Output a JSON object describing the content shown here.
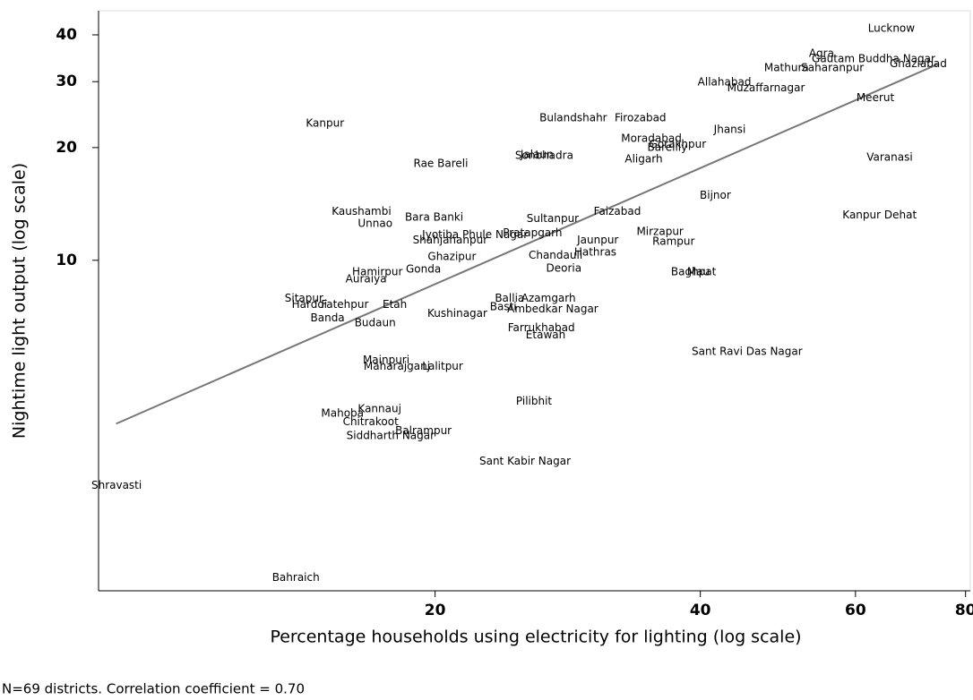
{
  "chart_data": {
    "type": "scatter",
    "xlabel": "Percentage households using electricity for lighting (log scale)",
    "ylabel": "Nightime light output (log scale)",
    "note": "N=69 districts. Correlation coefficient = 0.70",
    "log_x": true,
    "log_y": true,
    "xlim": [
      8.3,
      81
    ],
    "ylim": [
      1.31,
      46.4
    ],
    "xticks": [
      20,
      40,
      60,
      80
    ],
    "yticks": [
      10,
      20,
      30,
      40
    ],
    "labels": [
      "Lucknow",
      "Agra",
      "Gautam Buddha Nagar",
      "Ghaziabad",
      "Mathura",
      "Saharanpur",
      "Allahabad",
      "Muzaffarnagar",
      "Meerut",
      "Kanpur",
      "Bulandshahr",
      "Firozabad",
      "Jhansi",
      "Moradabad",
      "Bareilly",
      "Gorakhpur",
      "Sonbhadra",
      "Jalaun",
      "Aligarh",
      "Rae Bareli",
      "Varanasi",
      "Bijnor",
      "Kaushambi",
      "Unnao",
      "Bara Banki",
      "Faizabad",
      "Kanpur Dehat",
      "Sultanpur",
      "Jyotiba Phule Nagar",
      "Pratapgarh",
      "Shahjahanpur",
      "Mirzapur",
      "Rampur",
      "Jaunpur",
      "Hathras",
      "Chandauli",
      "Ghazipur",
      "Deoria",
      "Gonda",
      "Hamirpur",
      "Auraiya",
      "Baghpat",
      "Mau",
      "Sitapur",
      "Hardoi",
      "Fatehpur",
      "Etah",
      "Banda",
      "Budaun",
      "Kushinagar",
      "Ballia",
      "Azamgarh",
      "Basti",
      "Ambedkar Nagar",
      "Farrukhabad",
      "Etawah",
      "Sant Ravi Das Nagar",
      "Mainpuri",
      "Maharajganj",
      "Lalitpur",
      "Pilibhit",
      "Kannauj",
      "Mahoba",
      "Chitrakoot",
      "Balrampur",
      "Siddharth Nagar",
      "Sant Kabir Nagar",
      "Shravasti",
      "Bahraich"
    ],
    "x": [
      65.9,
      54.9,
      62.9,
      70.7,
      50.1,
      56.5,
      42.6,
      47.5,
      63.2,
      15.0,
      28.7,
      34.2,
      43.2,
      35.2,
      36.7,
      37.7,
      26.6,
      26.1,
      34.5,
      20.3,
      65.6,
      41.6,
      16.5,
      17.1,
      19.95,
      32.2,
      63.9,
      27.2,
      22.2,
      25.8,
      20.8,
      36.0,
      37.3,
      30.6,
      30.4,
      27.4,
      20.9,
      28.0,
      19.4,
      17.2,
      16.7,
      39.3,
      39.8,
      14.2,
      14.4,
      15.8,
      18.0,
      15.1,
      17.1,
      21.2,
      24.3,
      26.9,
      23.9,
      27.2,
      26.4,
      26.7,
      45.2,
      17.6,
      18.1,
      20.4,
      25.9,
      17.3,
      15.7,
      16.9,
      19.4,
      17.8,
      25.3,
      8.7,
      13.9
    ],
    "values": [
      41.6,
      35.6,
      34.5,
      33.4,
      32.6,
      32.6,
      29.9,
      28.8,
      27.1,
      23.2,
      24.0,
      24.0,
      22.3,
      21.1,
      20.0,
      20.4,
      19.0,
      19.1,
      18.6,
      18.1,
      18.8,
      14.9,
      13.5,
      12.5,
      13.0,
      13.5,
      13.2,
      12.9,
      11.7,
      11.8,
      11.3,
      11.9,
      11.2,
      11.3,
      10.5,
      10.3,
      10.2,
      9.5,
      9.45,
      9.3,
      8.9,
      9.3,
      9.3,
      7.9,
      7.6,
      7.6,
      7.6,
      7.0,
      6.8,
      7.2,
      7.9,
      7.9,
      7.5,
      7.4,
      6.6,
      6.3,
      5.7,
      5.4,
      5.2,
      5.2,
      4.2,
      4.0,
      3.9,
      3.7,
      3.5,
      3.4,
      2.9,
      2.5,
      1.42
    ],
    "fit_line": {
      "x": [
        8.69,
        74.4
      ],
      "values": [
        3.66,
        33.4
      ],
      "color": "#777777"
    }
  }
}
